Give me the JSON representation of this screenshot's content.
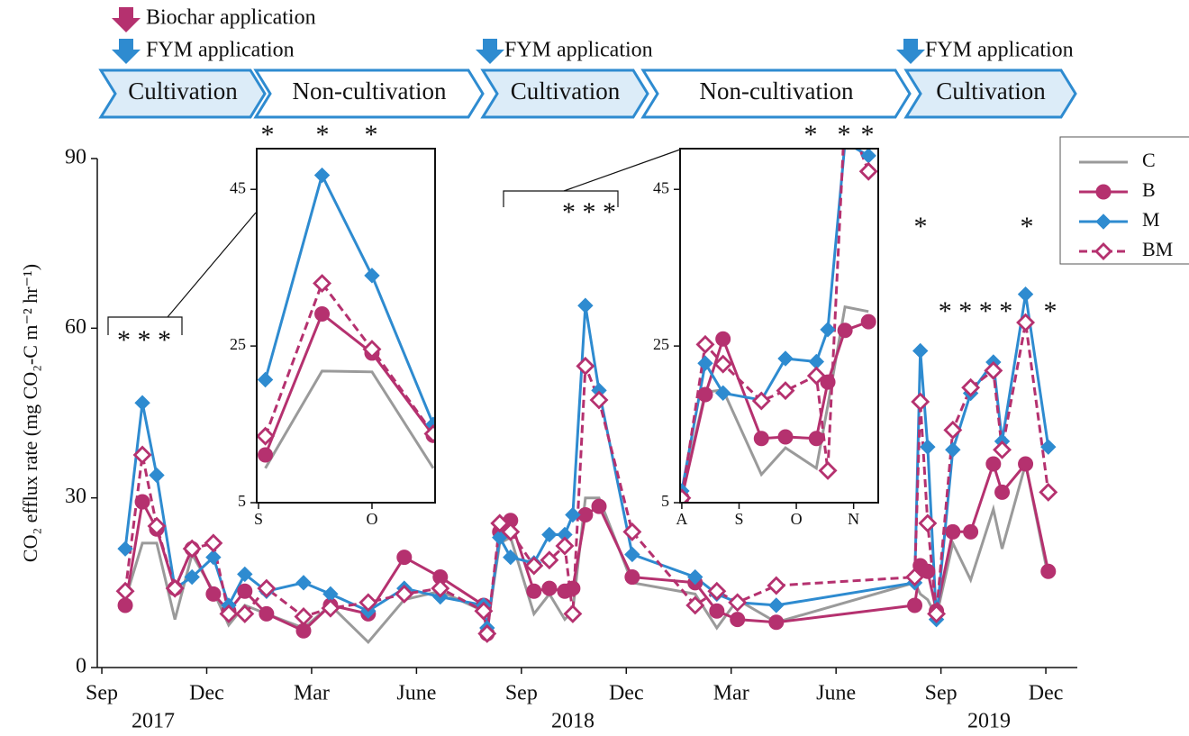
{
  "timeline": {
    "events": [
      "Biochar application",
      "FYM application",
      "FYM application",
      "FYM application"
    ],
    "event_colors": [
      "#b5316f",
      "#2e8bd0",
      "#2e8bd0",
      "#2e8bd0"
    ],
    "phases": [
      "Cultivation",
      "Non-cultivation",
      "Cultivation",
      "Non-cultivation",
      "Cultivation"
    ]
  },
  "chart_data": [
    {
      "type": "line",
      "y_label": "CO₂ efflux rate (mg CO₂-C m⁻² hr⁻¹)",
      "x": [
        0.67,
        1.16,
        1.57,
        2.09,
        2.58,
        3.19,
        3.63,
        4.09,
        4.71,
        5.77,
        6.54,
        7.62,
        8.65,
        9.68,
        10.92,
        11.02,
        11.38,
        11.69,
        12.36,
        12.8,
        13.24,
        13.47,
        13.83,
        14.22,
        15.17,
        16.97,
        17.59,
        18.18,
        19.29,
        23.25,
        23.41,
        23.62,
        23.87,
        24.34,
        24.85,
        25.5,
        25.75,
        26.42,
        27.07
      ],
      "xlim": [
        -0.13,
        27.9
      ],
      "xticks": [
        {
          "value": 0,
          "label": "Sep"
        },
        {
          "value": 3,
          "label": "Dec"
        },
        {
          "value": 6,
          "label": "Mar"
        },
        {
          "value": 9,
          "label": "June"
        },
        {
          "value": 12,
          "label": "Sep"
        },
        {
          "value": 15,
          "label": "Dec"
        },
        {
          "value": 18,
          "label": "Mar"
        },
        {
          "value": 21,
          "label": "June"
        },
        {
          "value": 24,
          "label": "Sep"
        },
        {
          "value": 27,
          "label": "Dec"
        }
      ],
      "x_group_labels": [
        "2017",
        "2018",
        "2019"
      ],
      "ylim": [
        0,
        90
      ],
      "yticks": [
        0,
        30,
        60,
        90
      ],
      "legend": "upper right",
      "annotations": [
        "* * *",
        "* * *",
        "*",
        "* * * *",
        "*",
        "*"
      ],
      "series": [
        {
          "name": "C",
          "color": "#9a9a9a",
          "marker": "none",
          "dashed": false,
          "filled": true,
          "values": [
            12,
            22,
            22,
            8.5,
            20,
            13.5,
            7.5,
            11,
            9.5,
            7,
            11,
            4.5,
            12,
            13.5,
            10,
            7,
            22,
            23,
            9.5,
            13,
            8.5,
            10,
            30,
            30,
            15,
            13,
            7,
            12,
            8,
            15,
            13,
            12,
            9,
            22,
            15.5,
            28,
            21,
            36,
            16
          ]
        },
        {
          "name": "B",
          "color": "#b5316f",
          "marker": "circle",
          "dashed": false,
          "filled": true,
          "values": [
            11,
            29.3,
            24.5,
            14,
            21,
            13,
            10,
            13.5,
            9.5,
            6.5,
            11,
            9.5,
            19.5,
            16,
            11,
            6,
            24,
            26,
            13.5,
            14,
            13.5,
            14,
            27,
            28.5,
            16,
            15,
            10,
            8.5,
            8,
            11,
            18,
            17,
            10,
            24,
            24,
            36,
            31,
            36,
            17
          ]
        },
        {
          "name": "M",
          "color": "#2e8bd0",
          "marker": "diamond",
          "dashed": false,
          "filled": true,
          "values": [
            21,
            46.8,
            34,
            14,
            16,
            19.5,
            11,
            16.5,
            13.5,
            15,
            13,
            10,
            14,
            12.5,
            11,
            7,
            23,
            19.5,
            18.5,
            23.5,
            23.5,
            27,
            64,
            49,
            20,
            16,
            13,
            11.5,
            11,
            15,
            56,
            39,
            8.5,
            38.5,
            48.5,
            54,
            40,
            66,
            39
          ]
        },
        {
          "name": "BM",
          "color": "#b5316f",
          "marker": "diamond",
          "dashed": true,
          "filled": false,
          "values": [
            13.5,
            37.6,
            25,
            14,
            21,
            22,
            9.5,
            9.5,
            14,
            9,
            10.5,
            11.5,
            13,
            14,
            10,
            6,
            25.5,
            24,
            18,
            19,
            21.5,
            9.5,
            53.3,
            47.3,
            24,
            11,
            13.5,
            11.5,
            14.5,
            16,
            47,
            25.5,
            9.5,
            42,
            49.5,
            52.5,
            38.5,
            61,
            31
          ]
        }
      ]
    },
    {
      "type": "line",
      "x": [
        0.06,
        0.56,
        1.0,
        1.54
      ],
      "xlim": [
        -0.016,
        1.556
      ],
      "xticks": [
        {
          "value": 0,
          "label": "S"
        },
        {
          "value": 1,
          "label": "O"
        }
      ],
      "ylim": [
        5,
        50.2
      ],
      "yticks": [
        5,
        25,
        45
      ],
      "annotations": [
        "*",
        "*",
        "*"
      ],
      "series": [
        {
          "name": "C",
          "color": "#9a9a9a",
          "marker": "none",
          "dashed": false,
          "filled": true,
          "values": [
            9.4,
            21.8,
            21.7,
            9.4
          ]
        },
        {
          "name": "B",
          "color": "#b5316f",
          "marker": "circle",
          "dashed": false,
          "filled": true,
          "values": [
            11.1,
            29.1,
            24.1,
            13.6
          ]
        },
        {
          "name": "M",
          "color": "#2e8bd0",
          "marker": "diamond",
          "dashed": false,
          "filled": true,
          "values": [
            20.7,
            46.8,
            34,
            15
          ]
        },
        {
          "name": "BM",
          "color": "#b5316f",
          "marker": "diamond",
          "dashed": true,
          "filled": false,
          "values": [
            13.5,
            33,
            24.6,
            13.8
          ]
        }
      ]
    },
    {
      "type": "line",
      "x": [
        0,
        0.41,
        0.72,
        1.39,
        1.81,
        2.35,
        2.55,
        2.85,
        3.26
      ],
      "xlim": [
        -0.03,
        3.43
      ],
      "xticks": [
        {
          "value": 0,
          "label": "A"
        },
        {
          "value": 1,
          "label": "S"
        },
        {
          "value": 2,
          "label": "O"
        },
        {
          "value": 3,
          "label": "N"
        }
      ],
      "ylim": [
        5,
        50.2
      ],
      "yticks": [
        5,
        25,
        45
      ],
      "annotations": [
        "*",
        "*",
        "*"
      ],
      "series": [
        {
          "name": "C",
          "color": "#9a9a9a",
          "marker": "none",
          "dashed": false,
          "filled": true,
          "values": [
            6.1,
            19.1,
            19.4,
            8.6,
            12,
            9.4,
            17.4,
            30,
            29.4
          ]
        },
        {
          "name": "B",
          "color": "#b5316f",
          "marker": "circle",
          "dashed": false,
          "filled": true,
          "values": [
            5.6,
            18.8,
            25.9,
            13.2,
            13.4,
            13.2,
            20.4,
            27,
            28.1
          ]
        },
        {
          "name": "M",
          "color": "#2e8bd0",
          "marker": "diamond",
          "dashed": false,
          "filled": true,
          "values": [
            6.5,
            22.8,
            19,
            18.1,
            23.4,
            23,
            27.1,
            51,
            49.3
          ]
        },
        {
          "name": "BM",
          "color": "#b5316f",
          "marker": "diamond",
          "dashed": true,
          "filled": false,
          "values": [
            5.6,
            25.2,
            22.7,
            18,
            19.3,
            21.2,
            9.1,
            55,
            47.3
          ]
        }
      ]
    }
  ]
}
